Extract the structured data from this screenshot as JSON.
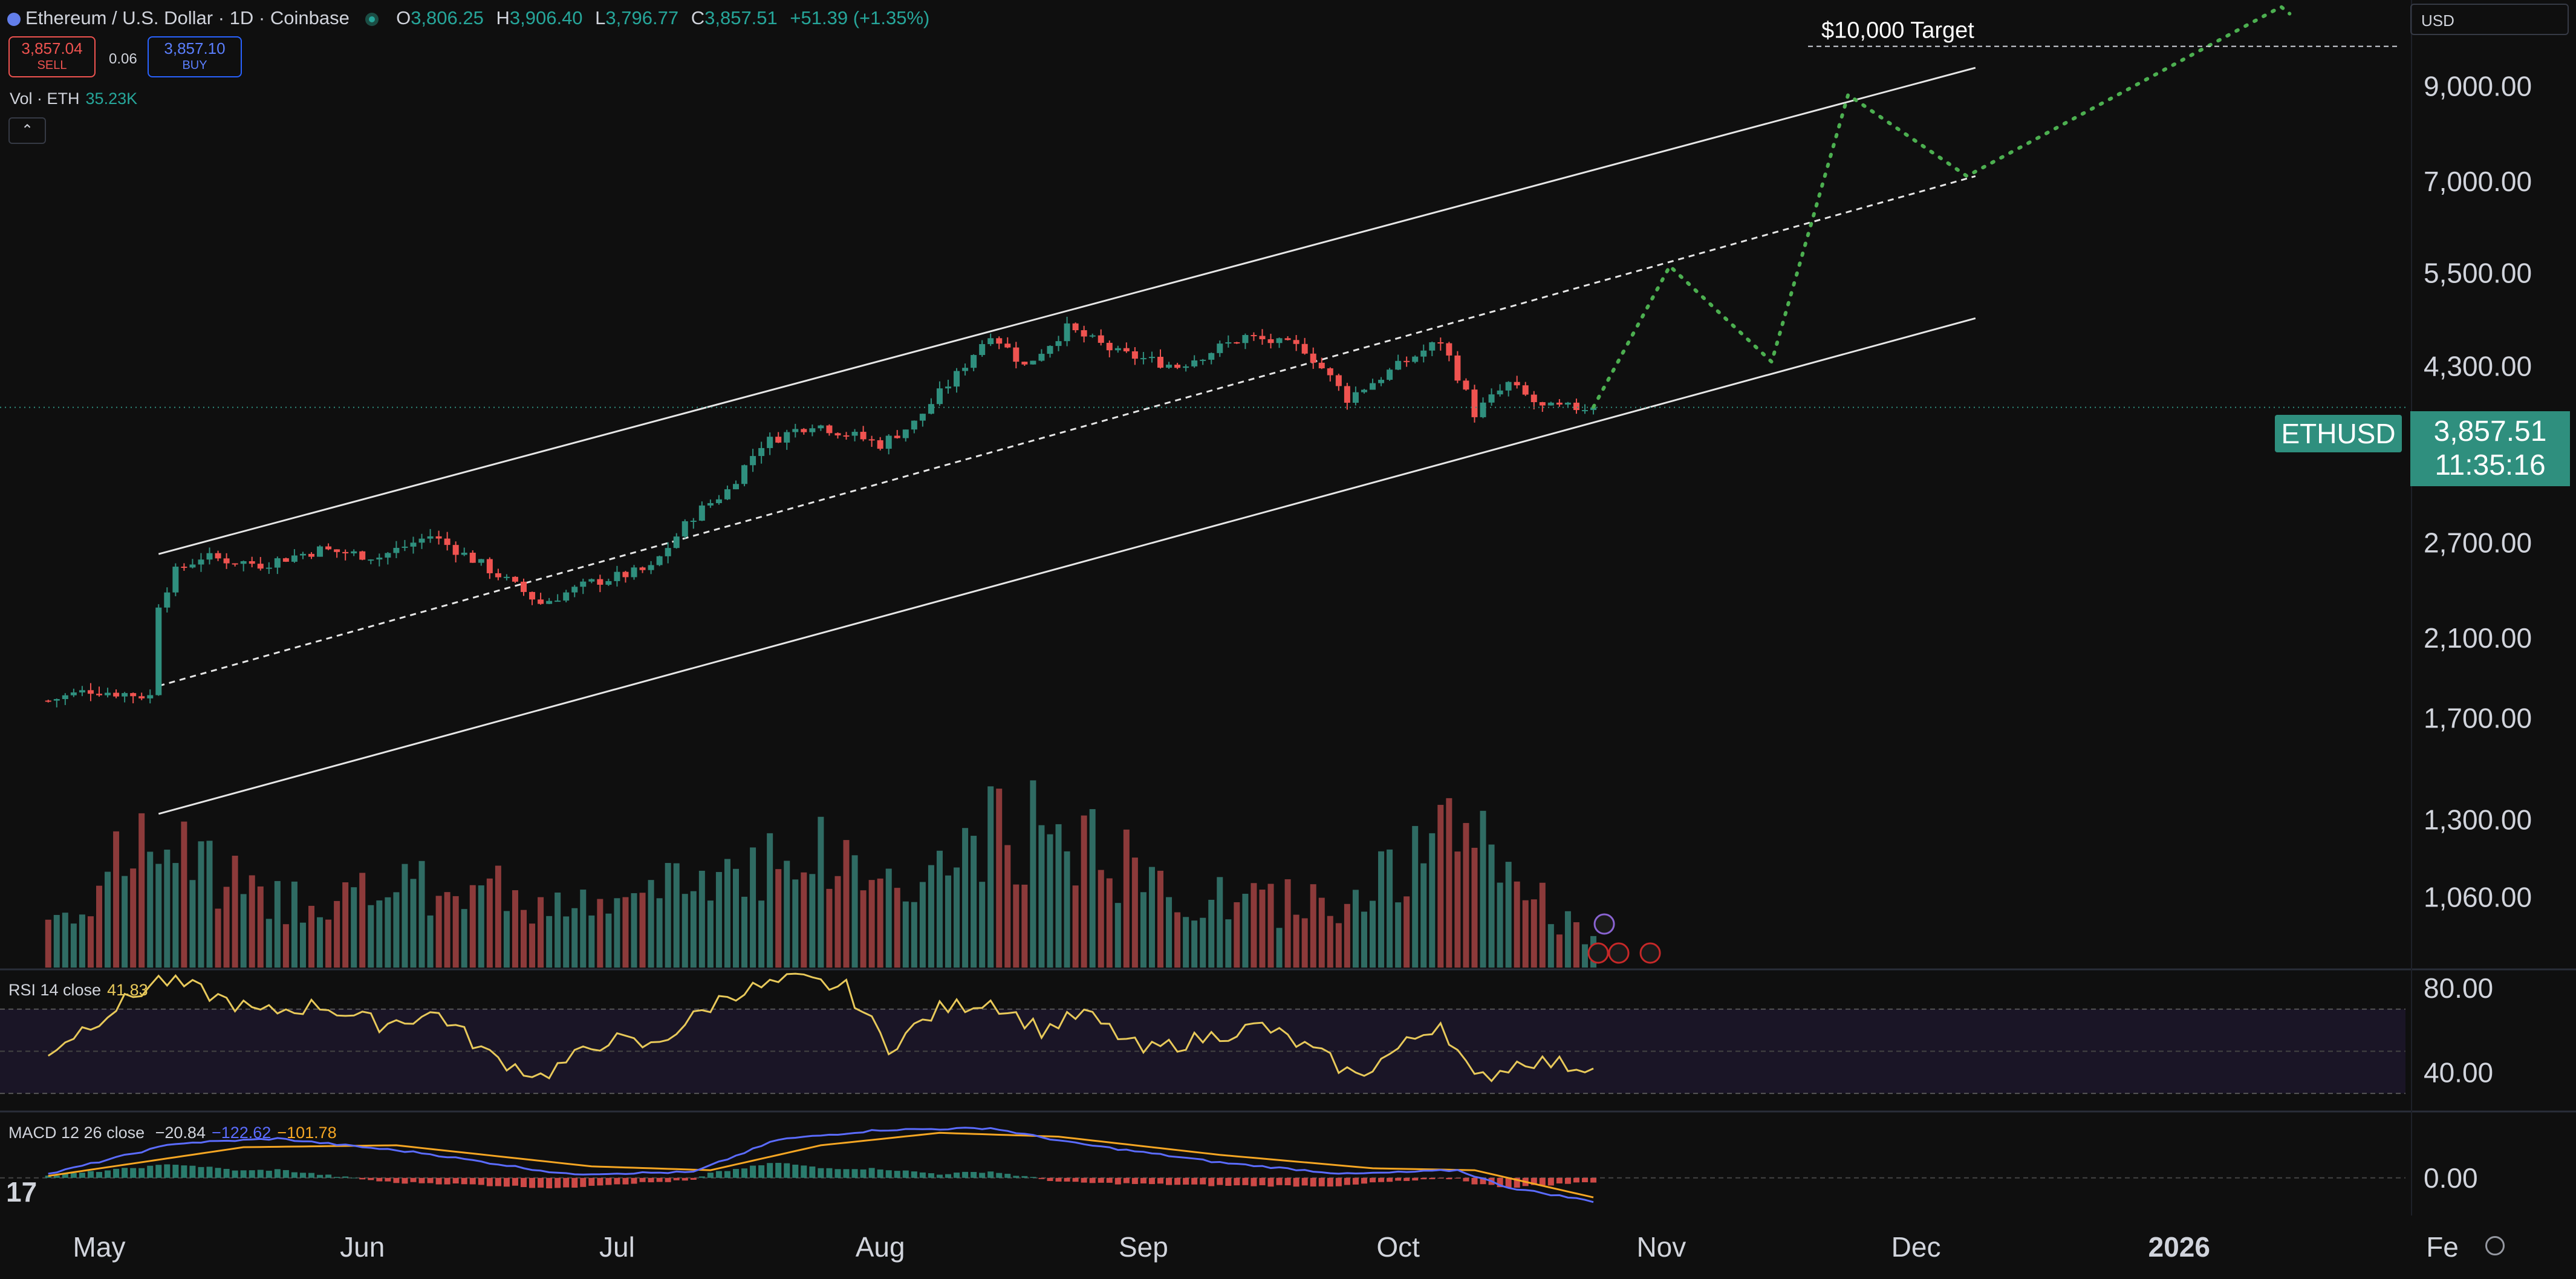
{
  "header": {
    "symbol_title": "Ethereum / U.S. Dollar · 1D · Coinbase",
    "open_label": "O",
    "open": "3,806.25",
    "high_label": "H",
    "high": "3,906.40",
    "low_label": "L",
    "low": "3,796.77",
    "close_label": "C",
    "close": "3,857.51",
    "change": "+51.39 (+1.35%)"
  },
  "trade": {
    "sell_price": "3,857.04",
    "sell_label": "SELL",
    "spread": "0.06",
    "buy_price": "3,857.10",
    "buy_label": "BUY"
  },
  "volume_legend": {
    "label": "Vol · ETH",
    "value": "35.23K"
  },
  "collapse_icon": "chevron-up-icon",
  "currency": "USD",
  "last_price": {
    "symbol": "ETHUSD",
    "price": "3,857.51",
    "countdown": "11:35:16"
  },
  "annotation": {
    "target_text": "$10,000 Target"
  },
  "rsi_legend": {
    "label": "RSI 14 close",
    "value": "41.83"
  },
  "macd_legend": {
    "label": "MACD 12 26 close",
    "hist": "−20.84",
    "macd": "−122.62",
    "signal": "−101.78"
  },
  "colors": {
    "up": "#2f8f7e",
    "down": "#ef5350",
    "bg": "#0f0f0f",
    "rsi": "#e8c95a",
    "macd": "#5b6cff",
    "signal": "#f5a623",
    "projection": "#4caf50"
  },
  "logo": "17",
  "settings_icon": "gear-icon",
  "chart_data": [
    {
      "type": "candlestick",
      "scale": "log",
      "x_tick_labels": [
        "May",
        "Jun",
        "Jul",
        "Aug",
        "Sep",
        "Oct",
        "Nov",
        "Dec",
        "2026",
        "Fe"
      ],
      "y_tick_labels": [
        "9,000.00",
        "7,000.00",
        "5,500.00",
        "4,300.00",
        "2,700.00",
        "2,100.00",
        "1,700.00",
        "1,300.00",
        "1,060.00"
      ],
      "y_ticks": [
        9000,
        7000,
        5500,
        4300,
        2700,
        2100,
        1700,
        1300,
        1060
      ],
      "ylim": [
        880,
        11300
      ],
      "anchors": [
        [
          "2025-04-25",
          1780
        ],
        [
          "2025-04-30",
          1830
        ],
        [
          "2025-05-07",
          1800
        ],
        [
          "2025-05-08",
          2300
        ],
        [
          "2025-05-10",
          2500
        ],
        [
          "2025-05-13",
          2600
        ],
        [
          "2025-05-20",
          2550
        ],
        [
          "2025-05-27",
          2650
        ],
        [
          "2025-06-03",
          2600
        ],
        [
          "2025-06-09",
          2750
        ],
        [
          "2025-06-15",
          2550
        ],
        [
          "2025-06-22",
          2300
        ],
        [
          "2025-06-28",
          2430
        ],
        [
          "2025-07-05",
          2520
        ],
        [
          "2025-07-10",
          2900
        ],
        [
          "2025-07-14",
          3100
        ],
        [
          "2025-07-18",
          3500
        ],
        [
          "2025-07-24",
          3700
        ],
        [
          "2025-08-01",
          3500
        ],
        [
          "2025-08-05",
          3700
        ],
        [
          "2025-08-10",
          4200
        ],
        [
          "2025-08-14",
          4700
        ],
        [
          "2025-08-18",
          4300
        ],
        [
          "2025-08-23",
          4750
        ],
        [
          "2025-08-29",
          4450
        ],
        [
          "2025-09-05",
          4300
        ],
        [
          "2025-09-13",
          4650
        ],
        [
          "2025-09-20",
          4500
        ],
        [
          "2025-09-25",
          3950
        ],
        [
          "2025-10-01",
          4300
        ],
        [
          "2025-10-06",
          4600
        ],
        [
          "2025-10-10",
          3800
        ],
        [
          "2025-10-14",
          4100
        ],
        [
          "2025-10-18",
          3850
        ],
        [
          "2025-10-24",
          3857.51
        ]
      ],
      "volume_range": [
        0,
        900000
      ],
      "volume_levels": [
        [
          "2025-04-25",
          180000
        ],
        [
          "2025-05-08",
          520000
        ],
        [
          "2025-05-20",
          260000
        ],
        [
          "2025-06-15",
          320000
        ],
        [
          "2025-06-28",
          220000
        ],
        [
          "2025-07-14",
          380000
        ],
        [
          "2025-07-22",
          480000
        ],
        [
          "2025-08-05",
          300000
        ],
        [
          "2025-08-14",
          520000
        ],
        [
          "2025-08-23",
          540000
        ],
        [
          "2025-09-05",
          270000
        ],
        [
          "2025-09-20",
          250000
        ],
        [
          "2025-09-28",
          320000
        ],
        [
          "2025-10-10",
          560000
        ],
        [
          "2025-10-18",
          250000
        ],
        [
          "2025-10-24",
          120000
        ]
      ],
      "channel": {
        "upper": [
          [
            "2025-05-08",
            2620
          ],
          [
            "2025-12-08",
            9450
          ]
        ],
        "middle": [
          [
            "2025-05-08",
            1850
          ],
          [
            "2025-12-08",
            7100
          ]
        ],
        "lower": [
          [
            "2025-05-08",
            1320
          ],
          [
            "2025-12-08",
            4880
          ]
        ]
      },
      "projection": [
        [
          "2025-10-24",
          3860
        ],
        [
          "2025-11-02",
          5600
        ],
        [
          "2025-11-14",
          4350
        ],
        [
          "2025-11-23",
          8800
        ],
        [
          "2025-12-07",
          7100
        ],
        [
          "2026-01-13",
          11100
        ],
        [
          "2026-01-14",
          10900
        ]
      ],
      "target_level": 10000
    },
    {
      "type": "line",
      "name": "RSI",
      "y_tick_labels": [
        "80.00",
        "40.00"
      ],
      "y_ticks": [
        80,
        40
      ],
      "band": [
        30,
        70
      ],
      "midline": 50,
      "ylim": [
        22,
        88
      ],
      "anchors": [
        [
          "2025-04-25",
          50
        ],
        [
          "2025-05-08",
          84
        ],
        [
          "2025-05-12",
          80
        ],
        [
          "2025-05-20",
          68
        ],
        [
          "2025-05-27",
          72
        ],
        [
          "2025-06-03",
          63
        ],
        [
          "2025-06-10",
          68
        ],
        [
          "2025-06-16",
          48
        ],
        [
          "2025-06-22",
          38
        ],
        [
          "2025-06-30",
          56
        ],
        [
          "2025-07-05",
          52
        ],
        [
          "2025-07-14",
          77
        ],
        [
          "2025-07-22",
          84
        ],
        [
          "2025-07-28",
          80
        ],
        [
          "2025-08-02",
          52
        ],
        [
          "2025-08-08",
          70
        ],
        [
          "2025-08-14",
          74
        ],
        [
          "2025-08-20",
          60
        ],
        [
          "2025-08-25",
          68
        ],
        [
          "2025-09-01",
          50
        ],
        [
          "2025-09-10",
          58
        ],
        [
          "2025-09-15",
          62
        ],
        [
          "2025-09-22",
          48
        ],
        [
          "2025-09-26",
          38
        ],
        [
          "2025-10-06",
          64
        ],
        [
          "2025-10-10",
          36
        ],
        [
          "2025-10-16",
          46
        ],
        [
          "2025-10-24",
          41.83
        ]
      ]
    },
    {
      "type": "macd",
      "y_tick_labels": [
        "0.00"
      ],
      "y_ticks": [
        0
      ],
      "ylim": [
        -190,
        340
      ],
      "macd_anchors": [
        [
          "2025-04-25",
          20
        ],
        [
          "2025-05-10",
          180
        ],
        [
          "2025-05-22",
          205
        ],
        [
          "2025-06-08",
          130
        ],
        [
          "2025-06-25",
          20
        ],
        [
          "2025-07-10",
          30
        ],
        [
          "2025-07-20",
          200
        ],
        [
          "2025-08-01",
          250
        ],
        [
          "2025-08-14",
          260
        ],
        [
          "2025-08-24",
          180
        ],
        [
          "2025-09-10",
          80
        ],
        [
          "2025-09-25",
          20
        ],
        [
          "2025-10-02",
          30
        ],
        [
          "2025-10-08",
          40
        ],
        [
          "2025-10-14",
          -50
        ],
        [
          "2025-10-24",
          -122.62
        ]
      ],
      "signal_anchors": [
        [
          "2025-04-25",
          10
        ],
        [
          "2025-05-18",
          160
        ],
        [
          "2025-06-05",
          170
        ],
        [
          "2025-06-28",
          60
        ],
        [
          "2025-07-12",
          40
        ],
        [
          "2025-07-25",
          170
        ],
        [
          "2025-08-08",
          235
        ],
        [
          "2025-08-22",
          215
        ],
        [
          "2025-09-10",
          120
        ],
        [
          "2025-09-28",
          50
        ],
        [
          "2025-10-10",
          40
        ],
        [
          "2025-10-24",
          -101.78
        ]
      ]
    }
  ]
}
